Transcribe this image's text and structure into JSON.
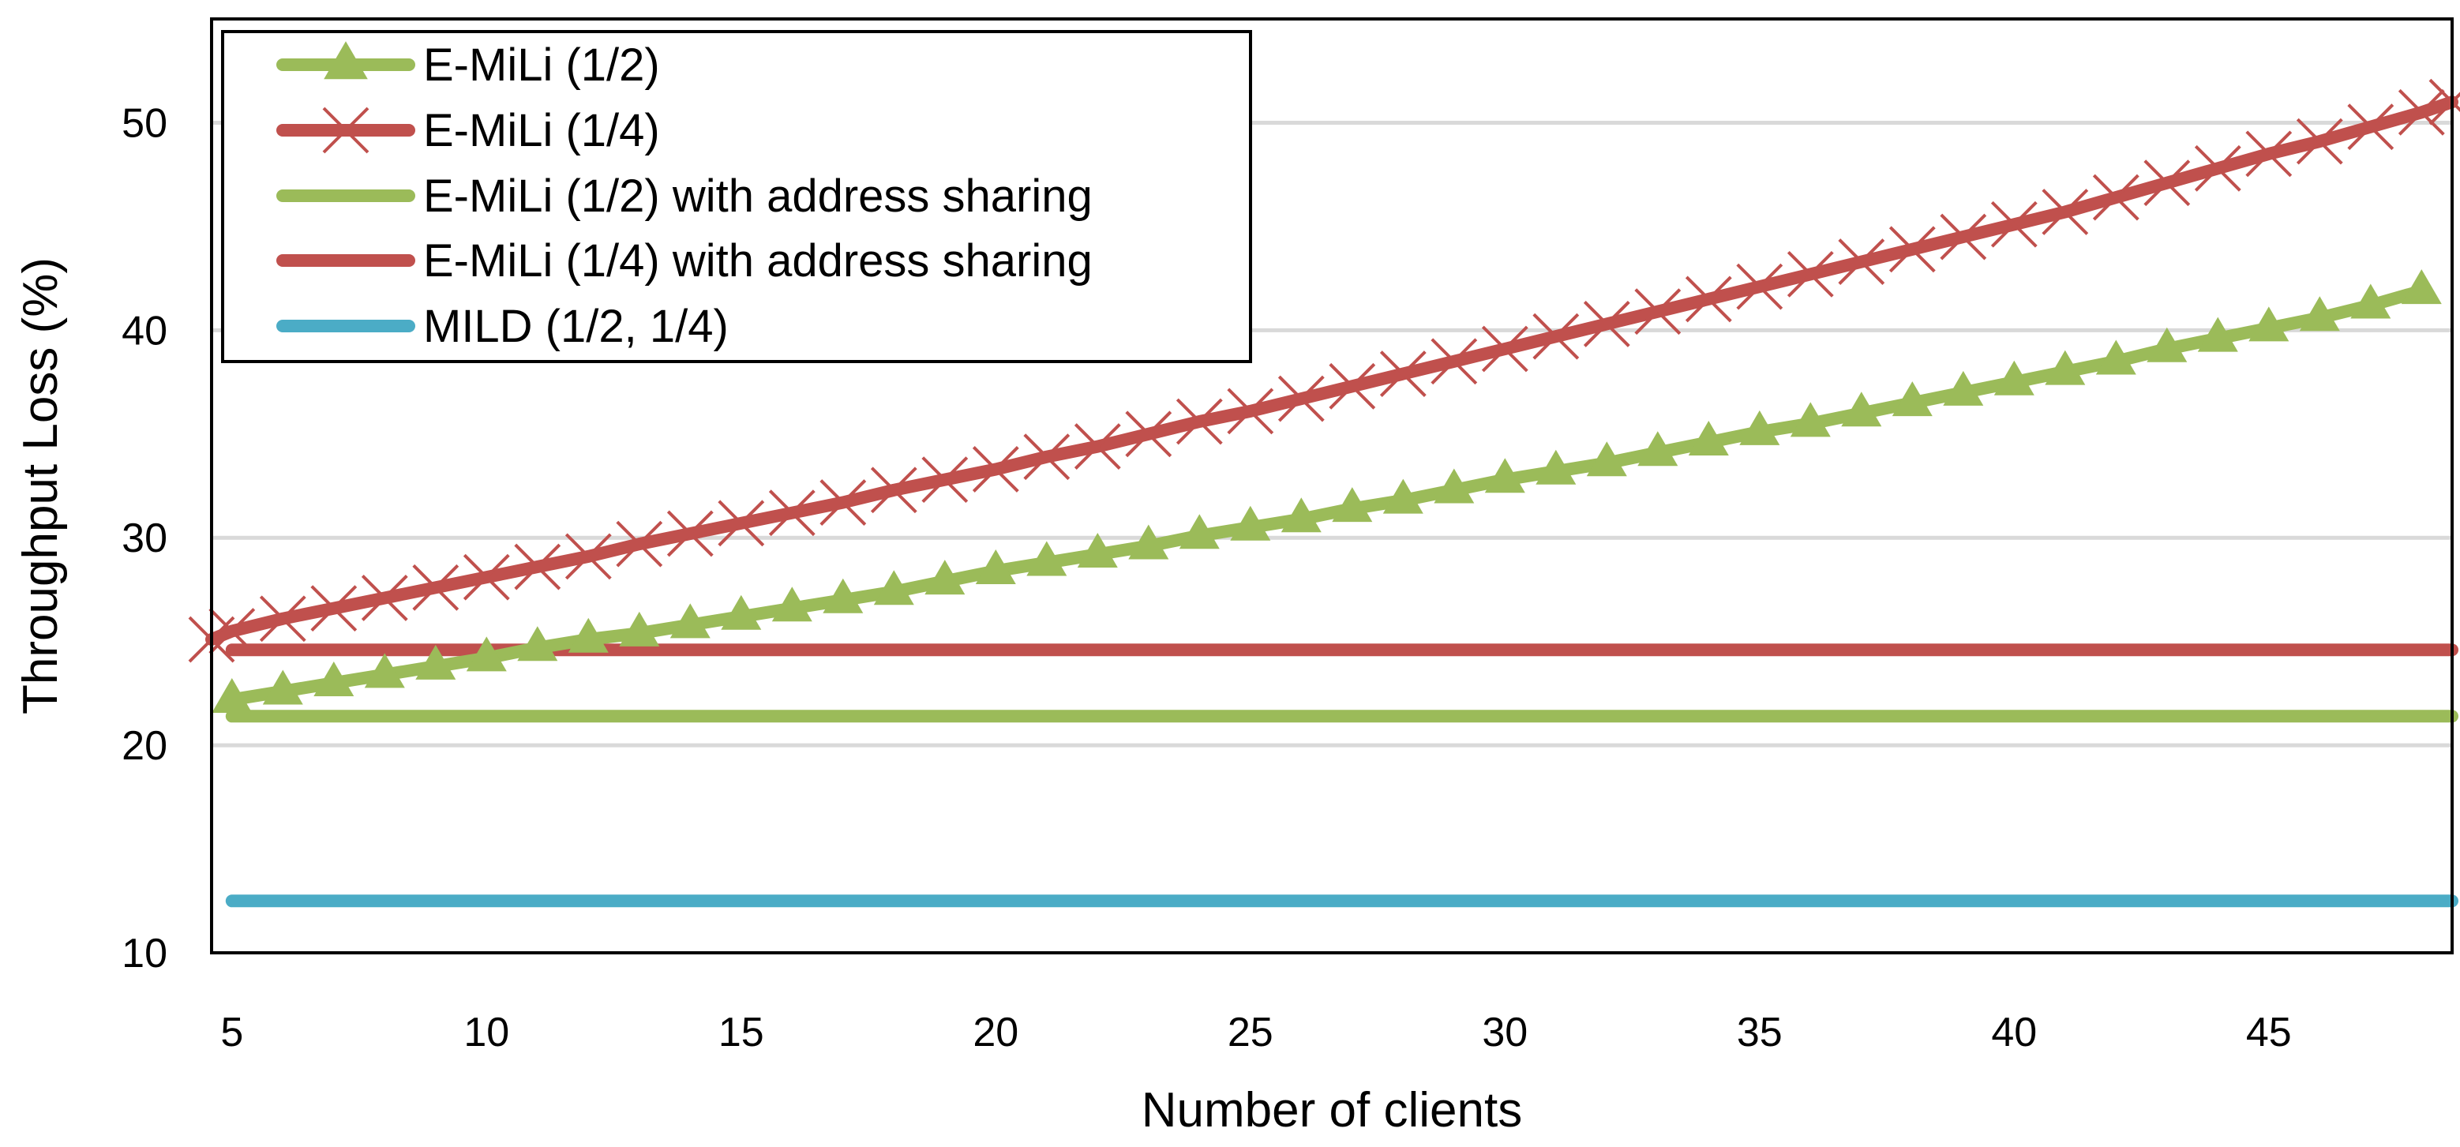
{
  "chart_data": {
    "type": "line",
    "title": "",
    "xlabel": "Number of clients",
    "ylabel": "Throughput Loss (%)",
    "xlim": [
      4.6,
      48.6
    ],
    "ylim": [
      10,
      55
    ],
    "xticks": [
      5,
      10,
      15,
      20,
      25,
      30,
      35,
      40,
      45
    ],
    "yticks": [
      10,
      20,
      30,
      40,
      50
    ],
    "grid": "horizontal",
    "legend_position": "top-left",
    "series": [
      {
        "name": "E-MiLi (1/2)",
        "color": "#9BBB59",
        "marker": "triangle",
        "x": [
          5,
          6,
          7,
          8,
          9,
          10,
          11,
          12,
          13,
          14,
          15,
          16,
          17,
          18,
          19,
          20,
          21,
          22,
          23,
          24,
          25,
          26,
          27,
          28,
          29,
          30,
          31,
          32,
          33,
          34,
          35,
          36,
          37,
          38,
          39,
          40,
          41,
          42,
          43,
          44,
          45,
          46,
          47,
          48
        ],
        "y": [
          22.2,
          22.6,
          23.0,
          23.4,
          23.8,
          24.2,
          24.7,
          25.1,
          25.4,
          25.8,
          26.2,
          26.6,
          27.0,
          27.4,
          27.9,
          28.4,
          28.8,
          29.2,
          29.6,
          30.1,
          30.5,
          30.9,
          31.4,
          31.8,
          32.3,
          32.8,
          33.2,
          33.6,
          34.1,
          34.6,
          35.1,
          35.5,
          36.0,
          36.5,
          37.0,
          37.5,
          38.0,
          38.5,
          39.1,
          39.6,
          40.1,
          40.6,
          41.2,
          41.9
        ]
      },
      {
        "name": "E-MiLi (1/4)",
        "color": "#C0504D",
        "marker": "x",
        "x": [
          4.6,
          5,
          6,
          7,
          8,
          9,
          10,
          11,
          12,
          13,
          14,
          15,
          16,
          17,
          18,
          19,
          20,
          21,
          22,
          23,
          24,
          25,
          26,
          27,
          28,
          29,
          30,
          31,
          32,
          33,
          34,
          35,
          36,
          37,
          38,
          39,
          40,
          41,
          42,
          43,
          44,
          45,
          46,
          47,
          48,
          48.6
        ],
        "y": [
          25.1,
          25.5,
          26.1,
          26.6,
          27.1,
          27.6,
          28.1,
          28.6,
          29.1,
          29.7,
          30.2,
          30.7,
          31.2,
          31.7,
          32.3,
          32.8,
          33.3,
          33.9,
          34.4,
          35.0,
          35.6,
          36.1,
          36.7,
          37.3,
          37.9,
          38.5,
          39.1,
          39.7,
          40.3,
          40.9,
          41.5,
          42.1,
          42.7,
          43.3,
          43.9,
          44.5,
          45.1,
          45.7,
          46.4,
          47.1,
          47.8,
          48.5,
          49.1,
          49.8,
          50.5,
          51.0
        ]
      },
      {
        "name": "E-MiLi (1/2) with address sharing",
        "color": "#9BBB59",
        "marker": "none",
        "x": [
          5,
          48.6
        ],
        "y": [
          21.4,
          21.4
        ]
      },
      {
        "name": "E-MiLi (1/4) with address sharing",
        "color": "#C0504D",
        "marker": "none",
        "x": [
          5,
          48.6
        ],
        "y": [
          24.6,
          24.6
        ]
      },
      {
        "name": "MILD (1/2, 1/4)",
        "color": "#4BACC6",
        "marker": "none",
        "x": [
          5,
          48.6
        ],
        "y": [
          12.5,
          12.5
        ]
      }
    ]
  }
}
